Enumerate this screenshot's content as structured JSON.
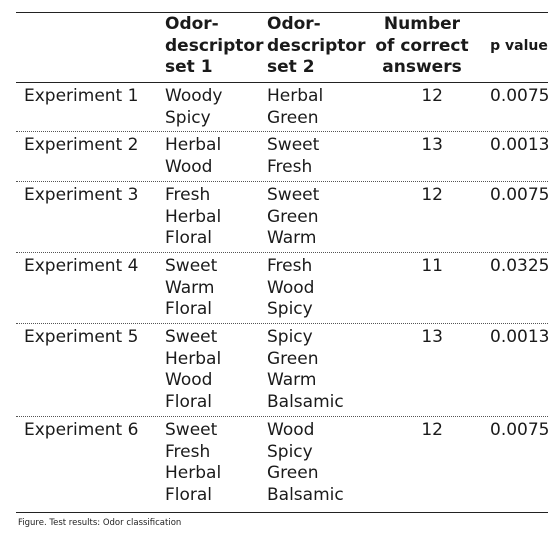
{
  "table": {
    "headers": [
      "",
      [
        "Odor-",
        "descriptor",
        "set 1"
      ],
      [
        "Odor-",
        "descriptor",
        "set 2"
      ],
      [
        "Number",
        "of correct",
        "answers"
      ],
      [
        "p value"
      ]
    ],
    "rows": [
      {
        "experiment": "Experiment 1",
        "set1": [
          "Woody",
          "Spicy"
        ],
        "set2": [
          "Herbal",
          "Green"
        ],
        "correct": "12",
        "p": "0.0075"
      },
      {
        "experiment": "Experiment 2",
        "set1": [
          "Herbal",
          "Wood"
        ],
        "set2": [
          "Sweet",
          "Fresh"
        ],
        "correct": "13",
        "p": "0.0013"
      },
      {
        "experiment": "Experiment 3",
        "set1": [
          "Fresh",
          "Herbal",
          "Floral"
        ],
        "set2": [
          "Sweet",
          "Green",
          "Warm"
        ],
        "correct": "12",
        "p": "0.0075"
      },
      {
        "experiment": "Experiment 4",
        "set1": [
          "Sweet",
          "Warm",
          "Floral"
        ],
        "set2": [
          "Fresh",
          "Wood",
          "Spicy"
        ],
        "correct": "11",
        "p": "0.0325"
      },
      {
        "experiment": "Experiment 5",
        "set1": [
          "Sweet",
          "Herbal",
          "Wood",
          "Floral"
        ],
        "set2": [
          "Spicy",
          "Green",
          "Warm",
          "Balsamic"
        ],
        "correct": "13",
        "p": "0.0013"
      },
      {
        "experiment": "Experiment 6",
        "set1": [
          "Sweet",
          "Fresh",
          "Herbal",
          "Floral"
        ],
        "set2": [
          "Wood",
          "Spicy",
          "Green",
          "Balsamic"
        ],
        "correct": "12",
        "p": "0.0075"
      }
    ]
  },
  "caption": "Figure. Test results: Odor classification"
}
